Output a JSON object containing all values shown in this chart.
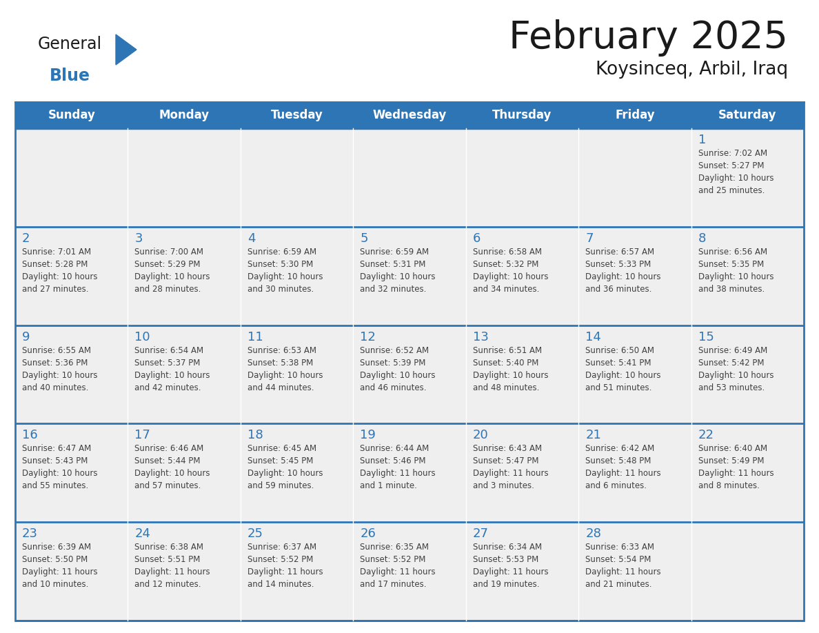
{
  "title": "February 2025",
  "subtitle": "Koysinceq, Arbil, Iraq",
  "days_of_week": [
    "Sunday",
    "Monday",
    "Tuesday",
    "Wednesday",
    "Thursday",
    "Friday",
    "Saturday"
  ],
  "header_bg": "#2E75B6",
  "header_text": "#FFFFFF",
  "cell_bg": "#EFEFEF",
  "cell_border_color": "#2E75B6",
  "row_sep_color": "#2E75B6",
  "day_number_color": "#2E75B6",
  "info_text_color": "#404040",
  "title_color": "#1a1a1a",
  "logo_general_color": "#1a1a1a",
  "logo_blue_color": "#2E75B6",
  "calendar_data": [
    [
      {
        "day": null,
        "info": ""
      },
      {
        "day": null,
        "info": ""
      },
      {
        "day": null,
        "info": ""
      },
      {
        "day": null,
        "info": ""
      },
      {
        "day": null,
        "info": ""
      },
      {
        "day": null,
        "info": ""
      },
      {
        "day": 1,
        "info": "Sunrise: 7:02 AM\nSunset: 5:27 PM\nDaylight: 10 hours\nand 25 minutes."
      }
    ],
    [
      {
        "day": 2,
        "info": "Sunrise: 7:01 AM\nSunset: 5:28 PM\nDaylight: 10 hours\nand 27 minutes."
      },
      {
        "day": 3,
        "info": "Sunrise: 7:00 AM\nSunset: 5:29 PM\nDaylight: 10 hours\nand 28 minutes."
      },
      {
        "day": 4,
        "info": "Sunrise: 6:59 AM\nSunset: 5:30 PM\nDaylight: 10 hours\nand 30 minutes."
      },
      {
        "day": 5,
        "info": "Sunrise: 6:59 AM\nSunset: 5:31 PM\nDaylight: 10 hours\nand 32 minutes."
      },
      {
        "day": 6,
        "info": "Sunrise: 6:58 AM\nSunset: 5:32 PM\nDaylight: 10 hours\nand 34 minutes."
      },
      {
        "day": 7,
        "info": "Sunrise: 6:57 AM\nSunset: 5:33 PM\nDaylight: 10 hours\nand 36 minutes."
      },
      {
        "day": 8,
        "info": "Sunrise: 6:56 AM\nSunset: 5:35 PM\nDaylight: 10 hours\nand 38 minutes."
      }
    ],
    [
      {
        "day": 9,
        "info": "Sunrise: 6:55 AM\nSunset: 5:36 PM\nDaylight: 10 hours\nand 40 minutes."
      },
      {
        "day": 10,
        "info": "Sunrise: 6:54 AM\nSunset: 5:37 PM\nDaylight: 10 hours\nand 42 minutes."
      },
      {
        "day": 11,
        "info": "Sunrise: 6:53 AM\nSunset: 5:38 PM\nDaylight: 10 hours\nand 44 minutes."
      },
      {
        "day": 12,
        "info": "Sunrise: 6:52 AM\nSunset: 5:39 PM\nDaylight: 10 hours\nand 46 minutes."
      },
      {
        "day": 13,
        "info": "Sunrise: 6:51 AM\nSunset: 5:40 PM\nDaylight: 10 hours\nand 48 minutes."
      },
      {
        "day": 14,
        "info": "Sunrise: 6:50 AM\nSunset: 5:41 PM\nDaylight: 10 hours\nand 51 minutes."
      },
      {
        "day": 15,
        "info": "Sunrise: 6:49 AM\nSunset: 5:42 PM\nDaylight: 10 hours\nand 53 minutes."
      }
    ],
    [
      {
        "day": 16,
        "info": "Sunrise: 6:47 AM\nSunset: 5:43 PM\nDaylight: 10 hours\nand 55 minutes."
      },
      {
        "day": 17,
        "info": "Sunrise: 6:46 AM\nSunset: 5:44 PM\nDaylight: 10 hours\nand 57 minutes."
      },
      {
        "day": 18,
        "info": "Sunrise: 6:45 AM\nSunset: 5:45 PM\nDaylight: 10 hours\nand 59 minutes."
      },
      {
        "day": 19,
        "info": "Sunrise: 6:44 AM\nSunset: 5:46 PM\nDaylight: 11 hours\nand 1 minute."
      },
      {
        "day": 20,
        "info": "Sunrise: 6:43 AM\nSunset: 5:47 PM\nDaylight: 11 hours\nand 3 minutes."
      },
      {
        "day": 21,
        "info": "Sunrise: 6:42 AM\nSunset: 5:48 PM\nDaylight: 11 hours\nand 6 minutes."
      },
      {
        "day": 22,
        "info": "Sunrise: 6:40 AM\nSunset: 5:49 PM\nDaylight: 11 hours\nand 8 minutes."
      }
    ],
    [
      {
        "day": 23,
        "info": "Sunrise: 6:39 AM\nSunset: 5:50 PM\nDaylight: 11 hours\nand 10 minutes."
      },
      {
        "day": 24,
        "info": "Sunrise: 6:38 AM\nSunset: 5:51 PM\nDaylight: 11 hours\nand 12 minutes."
      },
      {
        "day": 25,
        "info": "Sunrise: 6:37 AM\nSunset: 5:52 PM\nDaylight: 11 hours\nand 14 minutes."
      },
      {
        "day": 26,
        "info": "Sunrise: 6:35 AM\nSunset: 5:52 PM\nDaylight: 11 hours\nand 17 minutes."
      },
      {
        "day": 27,
        "info": "Sunrise: 6:34 AM\nSunset: 5:53 PM\nDaylight: 11 hours\nand 19 minutes."
      },
      {
        "day": 28,
        "info": "Sunrise: 6:33 AM\nSunset: 5:54 PM\nDaylight: 11 hours\nand 21 minutes."
      },
      {
        "day": null,
        "info": ""
      }
    ]
  ]
}
